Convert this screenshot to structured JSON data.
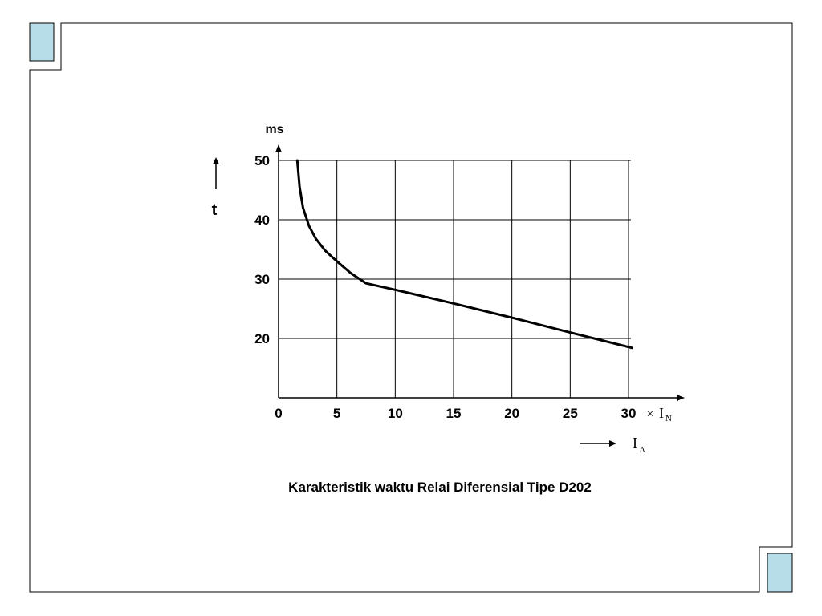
{
  "slide": {
    "frame_color": "#000000",
    "corner_fill": "#b7dde8"
  },
  "chart_data": {
    "type": "line",
    "title": "Karakteristik waktu  Relai Diferensial  Tipe D202",
    "ylabel": "t",
    "yunit": "ms",
    "xunit_symbol": "×",
    "xunit_main": "I",
    "xunit_sub": "N",
    "xaxis_var_main": "I",
    "xaxis_var_sub": "Δ",
    "xlim": [
      0,
      30
    ],
    "ylim": [
      10,
      50
    ],
    "xticks": [
      0,
      5,
      10,
      15,
      20,
      25,
      30
    ],
    "yticks": [
      20,
      30,
      40,
      50
    ],
    "grid": true,
    "series": [
      {
        "x": [
          1.6,
          1.8,
          2.1,
          2.6,
          3.2,
          4.0,
          5.0,
          6.2,
          7.5,
          10,
          15,
          20,
          25,
          30.3
        ],
        "y": [
          50,
          45.5,
          42,
          39,
          36.8,
          34.8,
          33.0,
          31.0,
          29.3,
          28.2,
          25.9,
          23.5,
          21.0,
          18.4
        ]
      }
    ]
  }
}
